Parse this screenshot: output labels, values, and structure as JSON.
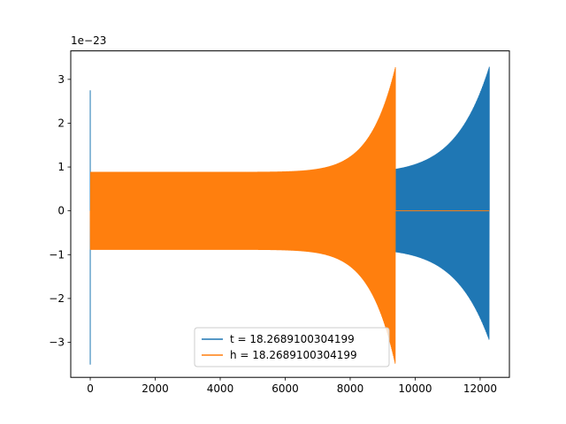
{
  "chart_data": {
    "type": "line",
    "title": "",
    "xlabel": "",
    "ylabel": "",
    "y_offset_label": "1e−23",
    "xlim": [
      -600,
      12900
    ],
    "ylim": [
      -3.8,
      3.65
    ],
    "x_ticks": [
      0,
      2000,
      4000,
      6000,
      8000,
      10000,
      12000
    ],
    "y_ticks": [
      -3,
      -2,
      -1,
      0,
      1,
      2,
      3
    ],
    "x_tick_labels": [
      "0",
      "2000",
      "4000",
      "6000",
      "8000",
      "10000",
      "12000"
    ],
    "y_tick_labels": [
      "−3",
      "−2",
      "−1",
      "0",
      "1",
      "2",
      "3"
    ],
    "grid": false,
    "legend_position": "lower-center",
    "series": [
      {
        "name": "t = 18.2689100304199",
        "color": "#1f77b4",
        "shape": "chirp",
        "ringdown_start": 0,
        "ringdown_peak": 2.75,
        "ringdown_trough": -3.5,
        "chirp_start": 0,
        "chirp_end": 12280,
        "amp_start": 0.85,
        "amp_end": 3.28,
        "trough_end": -2.95,
        "flat_after": null
      },
      {
        "name": "h = 18.2689100304199",
        "color": "#ff7f0e",
        "shape": "chirp",
        "ringdown_start": 0,
        "ringdown_peak": 0.3,
        "ringdown_trough": -0.3,
        "chirp_start": 0,
        "chirp_end": 9390,
        "amp_start": 0.88,
        "amp_end": 3.27,
        "trough_end": -3.5,
        "flat_after": 12280
      }
    ]
  }
}
